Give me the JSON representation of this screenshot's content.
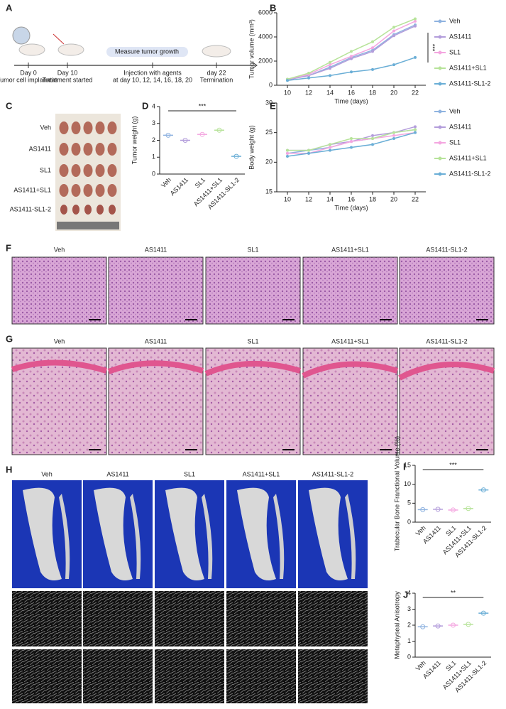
{
  "panel_labels": [
    "A",
    "B",
    "C",
    "D",
    "E",
    "F",
    "G",
    "H",
    "I",
    "J"
  ],
  "groups": [
    "Veh",
    "AS1411",
    "SL1",
    "AS1411+SL1",
    "AS1411-SL1-2"
  ],
  "timeline": {
    "day0": "Day 0",
    "day0_text": "Tumor cell implanation",
    "day10": "Day 10",
    "day10_text": "Treatment started",
    "measure": "Measure tumor growth",
    "injection": "Injection with agents",
    "injection_days": "at day 10, 12, 14, 16, 18, 20",
    "day22": "day 22",
    "day22_text": "Termination"
  },
  "chart_data": [
    {
      "type": "line",
      "xlabel": "Time (days)",
      "ylabel": "Tumor volume (mm³)",
      "annotation": "***",
      "x": [
        10,
        12,
        14,
        16,
        18,
        20,
        22
      ],
      "xlim": [
        9,
        23
      ],
      "xticks": [
        10,
        12,
        14,
        16,
        18,
        20,
        22
      ],
      "ylim": [
        0,
        6000
      ],
      "yticks": [
        0,
        2000,
        4000,
        6000
      ],
      "legend": true,
      "series": [
        {
          "name": "Veh",
          "color": "#8fb3e0",
          "values": [
            500,
            800,
            1500,
            2300,
            2900,
            4200,
            5000
          ]
        },
        {
          "name": "AS1411",
          "color": "#b39ddb",
          "values": [
            450,
            800,
            1400,
            2200,
            2800,
            4100,
            4900
          ]
        },
        {
          "name": "SL1",
          "color": "#f4a6e0",
          "values": [
            500,
            900,
            1700,
            2400,
            3100,
            4500,
            5300
          ]
        },
        {
          "name": "AS1411+SL1",
          "color": "#b7e39a",
          "values": [
            500,
            1000,
            1900,
            2800,
            3600,
            4800,
            5500
          ]
        },
        {
          "name": "AS1411-SL1-2",
          "color": "#6aaed6",
          "values": [
            400,
            600,
            800,
            1100,
            1300,
            1700,
            2300
          ]
        }
      ]
    },
    {
      "type": "dot",
      "ylabel": "Tumor weight (g)",
      "annotation": "***",
      "categories": [
        "Veh",
        "AS1411",
        "SL1",
        "AS1411+SL1",
        "AS1411-SL1-2"
      ],
      "values": [
        2.3,
        2.0,
        2.35,
        2.6,
        1.05
      ],
      "colors": [
        "#8fb3e0",
        "#b39ddb",
        "#f4a6e0",
        "#b7e39a",
        "#6aaed6"
      ],
      "ylim": [
        0,
        4
      ],
      "yticks": [
        0,
        1,
        2,
        3,
        4
      ]
    },
    {
      "type": "line",
      "xlabel": "Time (days)",
      "ylabel": "Body weight (g)",
      "x": [
        10,
        12,
        14,
        16,
        18,
        20,
        22
      ],
      "xlim": [
        9,
        23
      ],
      "xticks": [
        10,
        12,
        14,
        16,
        18,
        20,
        22
      ],
      "ylim": [
        15,
        30
      ],
      "yticks": [
        15,
        20,
        25,
        30
      ],
      "legend": true,
      "series": [
        {
          "name": "Veh",
          "color": "#8fb3e0",
          "values": [
            21.5,
            22,
            22.5,
            23.5,
            24,
            25,
            25.5
          ]
        },
        {
          "name": "AS1411",
          "color": "#b39ddb",
          "values": [
            22,
            22,
            23,
            23.5,
            24.5,
            25,
            26
          ]
        },
        {
          "name": "SL1",
          "color": "#f4a6e0",
          "values": [
            21.5,
            21.5,
            22.5,
            23.5,
            24,
            24.5,
            25
          ]
        },
        {
          "name": "AS1411+SL1",
          "color": "#b7e39a",
          "values": [
            22,
            22,
            23,
            24,
            24,
            25,
            25.5
          ]
        },
        {
          "name": "AS1411-SL1-2",
          "color": "#6aaed6",
          "values": [
            21,
            21.5,
            22,
            22.5,
            23,
            24,
            25
          ]
        }
      ]
    },
    {
      "type": "dot",
      "ylabel": "Trabecular Bone Franctional Volume (%)",
      "annotation": "***",
      "categories": [
        "Veh",
        "AS1411",
        "SL1",
        "AS1411+SL1",
        "AS1411-SL1-2"
      ],
      "values": [
        3.3,
        3.4,
        3.2,
        3.6,
        8.5
      ],
      "colors": [
        "#8fb3e0",
        "#b39ddb",
        "#f4a6e0",
        "#b7e39a",
        "#6aaed6"
      ],
      "ylim": [
        0,
        15
      ],
      "yticks": [
        0,
        5,
        10,
        15
      ]
    },
    {
      "type": "dot",
      "ylabel": "Metaphyseal Anisotropy",
      "annotation": "**",
      "categories": [
        "Veh",
        "AS1411",
        "SL1",
        "AS1411+SL1",
        "AS1411-SL1-2"
      ],
      "values": [
        1.9,
        1.95,
        2.0,
        2.05,
        2.75
      ],
      "colors": [
        "#8fb3e0",
        "#b39ddb",
        "#f4a6e0",
        "#b7e39a",
        "#6aaed6"
      ],
      "ylim": [
        0,
        4
      ],
      "yticks": [
        0,
        1,
        2,
        3,
        4
      ]
    }
  ]
}
